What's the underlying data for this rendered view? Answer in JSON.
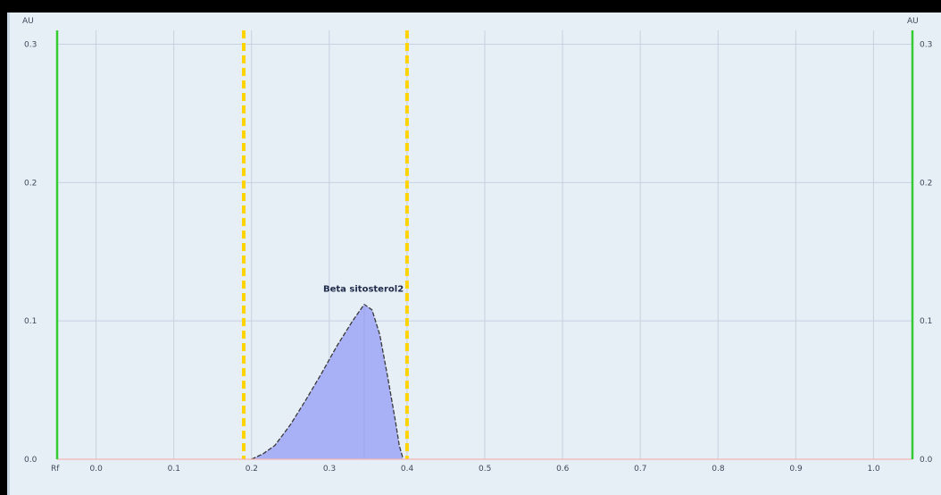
{
  "chart_data": {
    "type": "area",
    "title": "",
    "xlabel": "Rf",
    "ylabel_left": "AU",
    "ylabel_right": "AU",
    "xlim": [
      -0.05,
      1.05
    ],
    "ylim": [
      0.0,
      0.31
    ],
    "x_ticks": [
      "0.0",
      "0.1",
      "0.2",
      "0.3",
      "0.4",
      "0.5",
      "0.6",
      "0.7",
      "0.8",
      "0.9",
      "1.0"
    ],
    "y_ticks": [
      "0.0",
      "0.1",
      "0.2",
      "0.3"
    ],
    "grid": true,
    "series": [
      {
        "name": "Beta sitosterol2",
        "x": [
          0.2,
          0.215,
          0.23,
          0.25,
          0.27,
          0.29,
          0.31,
          0.33,
          0.345,
          0.355,
          0.365,
          0.375,
          0.385,
          0.39,
          0.395
        ],
        "y": [
          0.0,
          0.004,
          0.01,
          0.025,
          0.043,
          0.062,
          0.082,
          0.1,
          0.112,
          0.108,
          0.09,
          0.06,
          0.028,
          0.01,
          0.0
        ]
      }
    ],
    "peak_label": "Beta sitosterol2",
    "peak_label_at": [
      0.345,
      0.112
    ],
    "integration_bounds": [
      0.19,
      0.4
    ],
    "colors": {
      "fill": "#a9b1f6",
      "outline": "#3a3a3a",
      "bounds": "#ffd400",
      "axis_side": "#33cc33",
      "grid": "#c6d2df",
      "baseline": "#f2b4b4"
    }
  }
}
